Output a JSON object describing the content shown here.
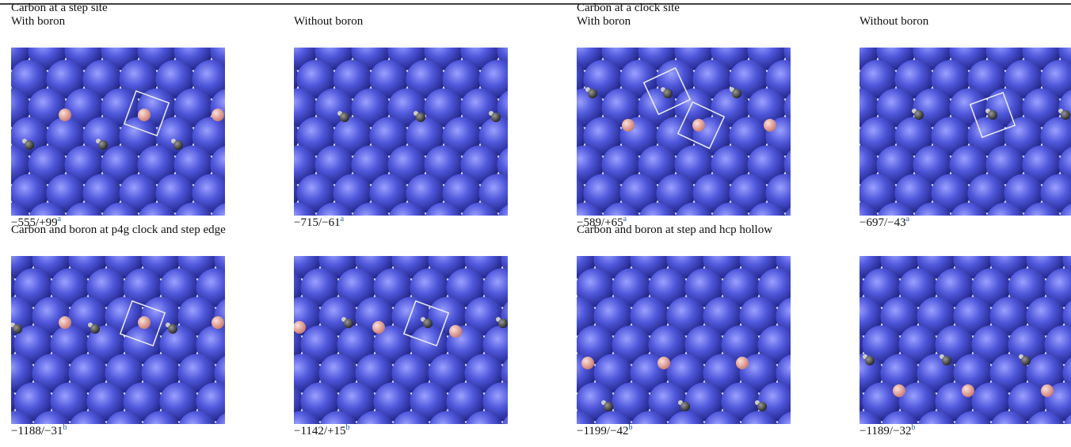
{
  "sections": [
    {
      "title": "Carbon at a step site",
      "panels": [
        {
          "label": "With boron",
          "energy": "−555/+99",
          "note": "a"
        },
        {
          "label": "Without boron",
          "energy": "−715/−61",
          "note": "a"
        }
      ]
    },
    {
      "title": "Carbon at a clock site",
      "panels": [
        {
          "label": "With boron",
          "energy": "−589/+65",
          "note": "a"
        },
        {
          "label": "Without boron",
          "energy": "−697/−43",
          "note": "a"
        }
      ]
    },
    {
      "title": "Carbon and boron at p4g clock and step edge",
      "panels": [
        {
          "energy": "−1188/−31",
          "note": "b"
        },
        {
          "energy": "−1142/+15",
          "note": "b"
        }
      ]
    },
    {
      "title": "Carbon and boron at step and hcp hollow",
      "panels": [
        {
          "energy": "−1199/−42",
          "note": "b"
        },
        {
          "energy": "−1189/−32",
          "note": "b"
        }
      ]
    }
  ]
}
